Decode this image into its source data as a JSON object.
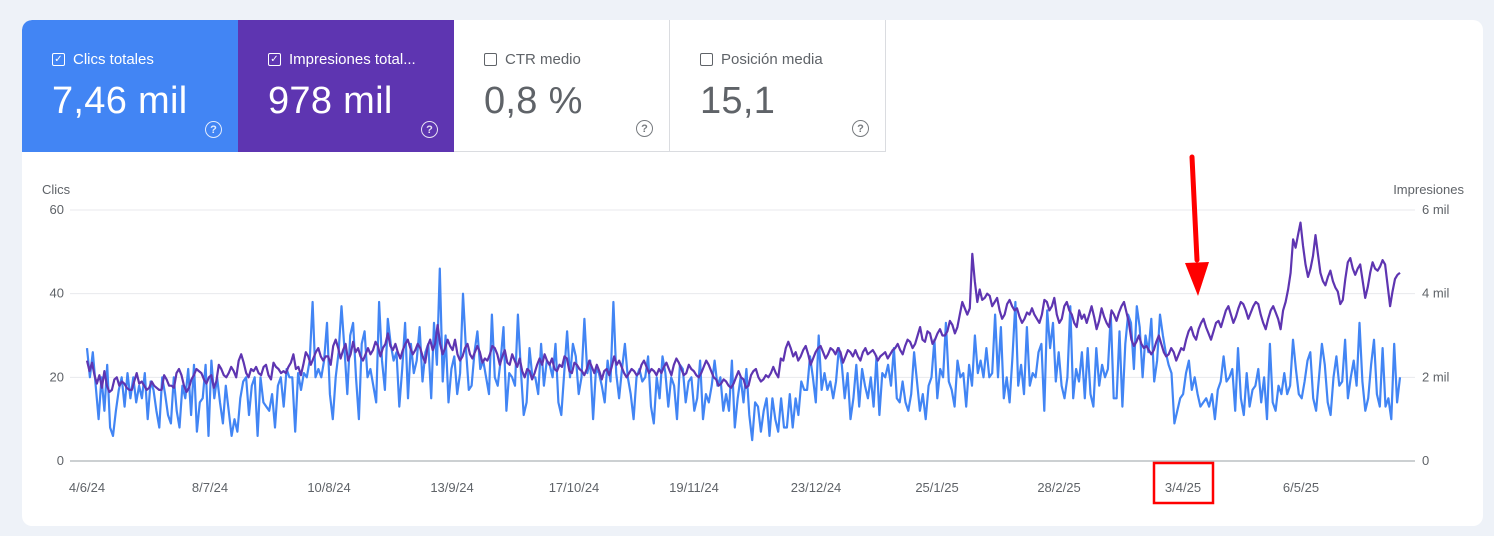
{
  "tiles": [
    {
      "label": "Clics totales",
      "value": "7,46 mil",
      "checked": true,
      "checkmark": "✓",
      "help": "?",
      "color": "#4285f4"
    },
    {
      "label": "Impresiones total...",
      "value": "978 mil",
      "checked": true,
      "checkmark": "✓",
      "help": "?",
      "color": "#5e35b1"
    },
    {
      "label": "CTR medio",
      "value": "0,8 %",
      "checked": false,
      "checkmark": "",
      "help": "?"
    },
    {
      "label": "Posición media",
      "value": "15,1",
      "checked": false,
      "checkmark": "",
      "help": "?"
    }
  ],
  "annotations": {
    "highlighted_tick": "3/4/25",
    "arrow_color": "#ff0000"
  },
  "chart_data": {
    "type": "line",
    "x_ticks": [
      "4/6/24",
      "8/7/24",
      "10/8/24",
      "13/9/24",
      "17/10/24",
      "19/11/24",
      "23/12/24",
      "25/1/25",
      "28/2/25",
      "3/4/25",
      "6/5/25"
    ],
    "left_axis": {
      "label": "Clics",
      "ticks": [
        "0",
        "20",
        "40",
        "60"
      ],
      "range": [
        0,
        60
      ]
    },
    "right_axis": {
      "label": "Impresiones",
      "ticks": [
        "0",
        "2 mil",
        "4 mil",
        "6 mil"
      ],
      "range": [
        0,
        6000
      ]
    },
    "series": [
      {
        "name": "Clics totales",
        "axis": "left",
        "color": "#4285f4",
        "values": [
          27,
          20,
          26,
          18,
          10,
          20,
          12,
          23,
          8,
          6,
          12,
          17,
          20,
          13,
          21,
          15,
          20,
          14,
          18,
          15,
          21,
          10,
          19,
          17,
          12,
          8,
          20,
          16,
          11,
          9,
          20,
          12,
          8,
          18,
          15,
          22,
          11,
          23,
          7,
          14,
          15,
          23,
          6,
          24,
          15,
          20,
          14,
          9,
          18,
          12,
          6,
          10,
          7,
          15,
          19,
          20,
          11,
          18,
          20,
          6,
          20,
          14,
          13,
          12,
          16,
          8,
          18,
          20,
          13,
          22,
          20,
          20,
          7,
          21,
          17,
          21,
          20,
          24,
          38,
          20,
          22,
          20,
          24,
          33,
          16,
          10,
          20,
          26,
          37,
          27,
          16,
          30,
          33,
          20,
          10,
          28,
          31,
          20,
          22,
          18,
          14,
          38,
          24,
          17,
          34,
          28,
          24,
          26,
          13,
          22,
          33,
          15,
          28,
          21,
          24,
          32,
          19,
          26,
          28,
          15,
          33,
          23,
          46,
          19,
          30,
          14,
          22,
          25,
          16,
          21,
          40,
          27,
          17,
          18,
          26,
          31,
          22,
          24,
          20,
          16,
          35,
          20,
          18,
          24,
          32,
          12,
          21,
          20,
          18,
          35,
          22,
          11,
          14,
          27,
          20,
          20,
          16,
          28,
          18,
          24,
          23,
          20,
          28,
          14,
          11,
          21,
          31,
          20,
          28,
          25,
          16,
          20,
          34,
          21,
          24,
          10,
          22,
          21,
          18,
          14,
          24,
          19,
          38,
          21,
          15,
          22,
          28,
          20,
          16,
          10,
          20,
          22,
          19,
          20,
          25,
          13,
          9,
          20,
          15,
          25,
          21,
          13,
          20,
          18,
          10,
          23,
          22,
          14,
          19,
          20,
          12,
          15,
          24,
          10,
          16,
          14,
          18,
          24,
          18,
          20,
          12,
          16,
          12,
          24,
          8,
          15,
          20,
          14,
          22,
          11,
          5,
          14,
          13,
          7,
          12,
          15,
          6,
          15,
          10,
          7,
          15,
          8,
          8,
          16,
          8,
          15,
          11,
          19,
          17,
          17,
          25,
          20,
          14,
          30,
          17,
          21,
          17,
          19,
          15,
          19,
          27,
          23,
          15,
          21,
          10,
          15,
          23,
          13,
          22,
          18,
          15,
          20,
          13,
          25,
          11,
          21,
          20,
          23,
          18,
          27,
          15,
          14,
          19,
          14,
          12,
          16,
          26,
          19,
          12,
          16,
          10,
          18,
          20,
          29,
          15,
          22,
          20,
          33,
          19,
          17,
          13,
          24,
          20,
          21,
          13,
          23,
          18,
          30,
          21,
          24,
          20,
          27,
          20,
          21,
          35,
          20,
          32,
          15,
          20,
          14,
          25,
          38,
          18,
          23,
          16,
          32,
          18,
          21,
          20,
          26,
          28,
          12,
          36,
          27,
          33,
          19,
          26,
          18,
          15,
          20,
          37,
          15,
          22,
          19,
          26,
          15,
          27,
          16,
          13,
          27,
          18,
          23,
          20,
          22,
          35,
          15,
          15,
          31,
          13,
          28,
          35,
          33,
          22,
          37,
          32,
          20,
          30,
          26,
          34,
          19,
          24,
          35,
          30,
          26,
          23,
          21,
          9,
          12,
          15,
          16,
          21,
          24,
          17,
          20,
          16,
          13,
          14,
          15,
          13,
          16,
          10,
          17,
          19,
          25,
          19,
          20,
          22,
          12,
          27,
          15,
          11,
          21,
          13,
          17,
          18,
          22,
          14,
          20,
          10,
          28,
          14,
          12,
          18,
          16,
          21,
          16,
          18,
          29,
          22,
          16,
          15,
          19,
          24,
          26,
          15,
          12,
          20,
          28,
          23,
          14,
          11,
          20,
          25,
          18,
          19,
          29,
          15,
          20,
          24,
          18,
          33,
          19,
          12,
          15,
          23,
          29,
          16,
          13,
          27,
          13,
          15,
          10,
          28,
          14,
          20
        ]
      },
      {
        "name": "Impresiones",
        "axis": "right",
        "color": "#5e35b1",
        "values": [
          2400,
          2150,
          2350,
          2050,
          1850,
          2050,
          1750,
          2150,
          1800,
          1650,
          1700,
          1950,
          2000,
          1800,
          1900,
          1850,
          1750,
          1700,
          1700,
          1900,
          2100,
          1850,
          1900,
          1800,
          1700,
          1750,
          1900,
          1800,
          1750,
          1700,
          1700,
          2050,
          1950,
          1800,
          1800,
          1750,
          2100,
          2200,
          2050,
          1800,
          1650,
          1750,
          1950,
          2050,
          2200,
          2150,
          2100,
          1950,
          1850,
          2000,
          2050,
          1750,
          1900,
          2300,
          2200,
          2050,
          2000,
          2100,
          2250,
          2150,
          2000,
          2400,
          2550,
          2350,
          2100,
          2000,
          2200,
          2150,
          2250,
          2100,
          2050,
          2250,
          2300,
          2050,
          1950,
          2350,
          2250,
          2200,
          2100,
          2150,
          2100,
          2250,
          2350,
          2550,
          2200,
          2250,
          2050,
          2300,
          2600,
          2500,
          2300,
          2450,
          2600,
          2700,
          2500,
          2400,
          2500,
          2500,
          2300,
          2750,
          2900,
          2700,
          2450,
          2650,
          2800,
          2400,
          2550,
          2850,
          2600,
          2700,
          2500,
          2400,
          2550,
          2700,
          2550,
          2650,
          2850,
          2750,
          2500,
          2700,
          2800,
          3050,
          2750,
          2650,
          2800,
          2600,
          2450,
          2650,
          2800,
          2900,
          2700,
          2550,
          2650,
          2800,
          2700,
          2500,
          2350,
          2750,
          2900,
          2650,
          2800,
          3250,
          2800,
          2550,
          2700,
          2900,
          2750,
          2650,
          2900,
          2550,
          2400,
          2500,
          2700,
          2800,
          2550,
          2450,
          2600,
          2750,
          2600,
          2350,
          2450,
          2400,
          2550,
          2750,
          2700,
          2550,
          2300,
          2500,
          2650,
          2350,
          2300,
          2550,
          2400,
          2250,
          2450,
          2150,
          2000,
          2200,
          2150,
          1950,
          2100,
          2300,
          2450,
          2300,
          2550,
          2400,
          2300,
          2450,
          2200,
          2150,
          2300,
          2250,
          2500,
          2450,
          2150,
          2100,
          2350,
          2300,
          2200,
          2150,
          2050,
          2200,
          2400,
          2250,
          2100,
          2300,
          2150,
          1950,
          2150,
          2200,
          2050,
          2250,
          2500,
          2300,
          2400,
          2250,
          2100,
          2000,
          2100,
          2200,
          2150,
          2050,
          2100,
          2300,
          2400,
          2250,
          2100,
          2200,
          2150,
          2050,
          2200,
          2100,
          2250,
          2350,
          2200,
          2050,
          2300,
          2450,
          2350,
          2200,
          2050,
          2100,
          2300,
          2200,
          2150,
          2050,
          2000,
          2100,
          2250,
          2400,
          2300,
          2150,
          2000,
          1950,
          1800,
          1850,
          1950,
          1900,
          1800,
          1750,
          1850,
          2000,
          2150,
          2000,
          1950,
          1750,
          1800,
          2050,
          2150,
          2200,
          2000,
          1900,
          1950,
          2050,
          2000,
          2100,
          2250,
          2100,
          2000,
          2450,
          2400,
          2700,
          2850,
          2700,
          2500,
          2600,
          2400,
          2500,
          2650,
          2750,
          2550,
          2300,
          2450,
          2600,
          2700,
          2750,
          2600,
          2450,
          2550,
          2700,
          2650,
          2550,
          2700,
          2600,
          2350,
          2500,
          2650,
          2600,
          2500,
          2650,
          2500,
          2400,
          2600,
          2700,
          2550,
          2600,
          2650,
          2550,
          2400,
          2500,
          2550,
          2600,
          2450,
          2550,
          2650,
          2700,
          2800,
          2650,
          2550,
          2750,
          2900,
          2850,
          2700,
          2800,
          3000,
          3200,
          2900,
          2850,
          3100,
          3050,
          2800,
          2900,
          3050,
          3150,
          3000,
          3000,
          3100,
          3350,
          3250,
          3050,
          3200,
          3500,
          3800,
          3650,
          3500,
          3650,
          4950,
          4300,
          3800,
          4100,
          3850,
          3900,
          4000,
          3950,
          3700,
          3800,
          3900,
          3600,
          3400,
          3500,
          3750,
          3850,
          3700,
          3600,
          3650,
          3450,
          3300,
          3400,
          3550,
          3500,
          3650,
          3500,
          3400,
          3300,
          3500,
          3850,
          3800,
          3600,
          3700,
          3900,
          3500,
          3300,
          3400,
          3700,
          3800,
          3600,
          3500,
          3300,
          3200,
          3600,
          3400,
          3500,
          3300,
          3500,
          3700,
          3450,
          3150,
          3350,
          3650,
          3450,
          3300,
          3200,
          3600,
          3500,
          3350,
          3550,
          3700,
          3800,
          3550,
          3300,
          2900,
          2750,
          2850,
          3000,
          2800,
          2700,
          2750,
          2650,
          2550,
          2650,
          2850,
          3000,
          2800,
          2600,
          2500,
          2550,
          2700,
          2600,
          2400,
          2550,
          2700,
          2650,
          2900,
          3100,
          3200,
          3000,
          2900,
          3150,
          3300,
          3400,
          3200,
          3050,
          2900,
          3100,
          3300,
          3350,
          3200,
          3400,
          3600,
          3700,
          3500,
          3300,
          3450,
          3650,
          3800,
          3750,
          3600,
          3400,
          3550,
          3700,
          3800,
          3750,
          3500,
          3300,
          3150,
          3400,
          3600,
          3700,
          3550,
          3400,
          3150,
          3600,
          3800,
          4100,
          4500,
          5300,
          5100,
          5400,
          5700,
          5150,
          4700,
          4400,
          4600,
          4900,
          5400,
          4950,
          4500,
          4300,
          4200,
          4400,
          4550,
          4300,
          4150,
          4050,
          3750,
          3850,
          4350,
          4750,
          4850,
          4600,
          4450,
          4600,
          4700,
          4300,
          3900,
          4150,
          4500,
          4750,
          4600,
          4550,
          4650,
          4800,
          4700,
          4200,
          3700,
          4050,
          4350,
          4450,
          4500
        ]
      }
    ]
  }
}
